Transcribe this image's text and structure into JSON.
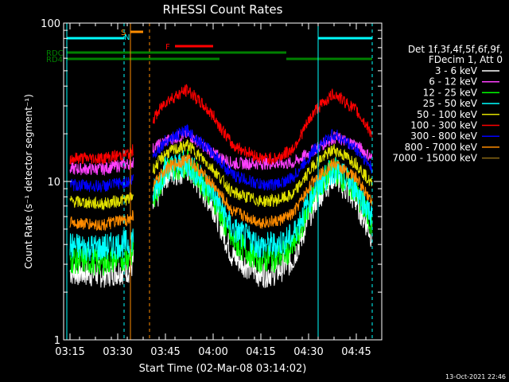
{
  "chart_data": {
    "type": "line",
    "title": "RHESSI Count Rates",
    "xlabel": "Start Time (02-Mar-08 03:14:02)",
    "ylabel": "Count Rate (s⁻¹ detector segment⁻¹)",
    "y_scale": "log",
    "ylim": [
      1,
      100
    ],
    "xlim": [
      "03:13",
      "04:53"
    ],
    "x_ticks": [
      "03:15",
      "03:30",
      "03:45",
      "04:00",
      "04:15",
      "04:30",
      "04:45"
    ],
    "y_ticks": [
      "1",
      "10",
      "100"
    ],
    "footer_date": "13-Oct-2021 22:46",
    "legend": {
      "header_line1": "Det 1f,3f,4f,5f,6f,9f,",
      "header_line2": "FDecim 1, Att 0",
      "placement": "right"
    },
    "series": [
      {
        "name": "3 - 6 keV",
        "color": "#ffffff",
        "x": [
          "03:15",
          "03:25",
          "03:34",
          "03:38",
          "03:45",
          "03:52",
          "04:00",
          "04:06",
          "04:15",
          "04:20",
          "04:25",
          "04:32",
          "04:38",
          "04:45",
          "04:50"
        ],
        "values": [
          2.7,
          2.6,
          2.8,
          null,
          11,
          12,
          7,
          3.4,
          2.6,
          2.7,
          3.2,
          7.5,
          11,
          7.5,
          4.5
        ]
      },
      {
        "name": "6 - 12 keV",
        "color": "#ff40ff",
        "x": [
          "03:15",
          "03:25",
          "03:34",
          "03:38",
          "03:45",
          "03:52",
          "04:00",
          "04:06",
          "04:15",
          "04:20",
          "04:25",
          "04:32",
          "04:38",
          "04:45",
          "04:50"
        ],
        "values": [
          12,
          12,
          13,
          null,
          18,
          20,
          15,
          13,
          13,
          13,
          13,
          16,
          19,
          17,
          14
        ]
      },
      {
        "name": "12 - 25 keV",
        "color": "#00ff00",
        "x": [
          "03:15",
          "03:25",
          "03:34",
          "03:38",
          "03:45",
          "03:52",
          "04:00",
          "04:06",
          "04:15",
          "04:20",
          "04:25",
          "04:32",
          "04:38",
          "04:45",
          "04:50"
        ],
        "values": [
          3.2,
          3.1,
          3.4,
          null,
          12,
          13,
          8,
          4.2,
          3.2,
          3.3,
          3.8,
          8.5,
          12,
          8.5,
          5.3
        ]
      },
      {
        "name": "25 - 50 keV",
        "color": "#00ffff",
        "x": [
          "03:15",
          "03:25",
          "03:34",
          "03:38",
          "03:45",
          "03:52",
          "04:00",
          "04:06",
          "04:15",
          "04:20",
          "04:25",
          "04:32",
          "04:38",
          "04:45",
          "04:50"
        ],
        "values": [
          3.9,
          3.8,
          4.1,
          null,
          12,
          13,
          8.5,
          5,
          3.9,
          4,
          4.5,
          9,
          12,
          9,
          6
        ]
      },
      {
        "name": "50 - 100 keV",
        "color": "#e0e000",
        "x": [
          "03:15",
          "03:25",
          "03:34",
          "03:38",
          "03:45",
          "03:52",
          "04:00",
          "04:06",
          "04:15",
          "04:20",
          "04:25",
          "04:32",
          "04:38",
          "04:45",
          "04:50"
        ],
        "values": [
          7.5,
          7.2,
          7.8,
          null,
          15,
          17,
          12,
          8.5,
          7.5,
          7.6,
          8.2,
          13,
          16,
          13,
          9.5
        ]
      },
      {
        "name": "100 - 300 keV",
        "color": "#ff0000",
        "x": [
          "03:15",
          "03:25",
          "03:34",
          "03:38",
          "03:45",
          "03:52",
          "04:00",
          "04:06",
          "04:15",
          "04:20",
          "04:25",
          "04:32",
          "04:38",
          "04:45",
          "04:50"
        ],
        "values": [
          14,
          14,
          15,
          null,
          32,
          38,
          26,
          17,
          14,
          14,
          16,
          28,
          36,
          28,
          20
        ]
      },
      {
        "name": "300 - 800 keV",
        "color": "#0000ff",
        "x": [
          "03:15",
          "03:25",
          "03:34",
          "03:38",
          "03:45",
          "03:52",
          "04:00",
          "04:06",
          "04:15",
          "04:20",
          "04:25",
          "04:32",
          "04:38",
          "04:45",
          "04:50"
        ],
        "values": [
          9.5,
          9.3,
          10,
          null,
          18,
          21,
          15,
          11,
          9.5,
          9.6,
          10.5,
          16,
          20,
          16,
          12
        ]
      },
      {
        "name": "800 - 7000 keV",
        "color": "#ff8c00",
        "x": [
          "03:15",
          "03:25",
          "03:34",
          "03:38",
          "03:45",
          "03:52",
          "04:00",
          "04:06",
          "04:15",
          "04:20",
          "04:25",
          "04:32",
          "04:38",
          "04:45",
          "04:50"
        ],
        "values": [
          5.5,
          5.3,
          5.8,
          null,
          12,
          14,
          9.5,
          6.5,
          5.5,
          5.6,
          6.2,
          10.5,
          13,
          10.5,
          7.5
        ]
      },
      {
        "name": "7000 - 15000 keV",
        "color": "#8b6914",
        "x": [],
        "values": []
      }
    ],
    "flag_bars": [
      {
        "label": "",
        "color": "#00ffff",
        "segments": [
          [
            "03:14",
            "03:32"
          ],
          [
            "04:33",
            "04:50"
          ]
        ]
      },
      {
        "label": "S",
        "color": "#ff8c00",
        "segments": [
          [
            "03:34",
            "03:38"
          ]
        ]
      },
      {
        "label": "F",
        "color": "#ff0000",
        "segments": [
          [
            "03:48",
            "04:00"
          ]
        ]
      },
      {
        "label": "RDC",
        "color": "#008000",
        "segments": [
          [
            "03:14",
            "03:38"
          ],
          [
            "03:38",
            "04:02"
          ],
          [
            "04:02",
            "04:23"
          ]
        ]
      },
      {
        "label": "RD4",
        "color": "#008000",
        "segments": [
          [
            "03:14",
            "03:38"
          ],
          [
            "03:38",
            "04:02"
          ],
          [
            "04:23",
            "04:50"
          ]
        ]
      }
    ],
    "flag_label_N": "N",
    "vertical_lines": [
      {
        "x": "03:14",
        "color": "#00ffff",
        "style": "solid"
      },
      {
        "x": "03:32",
        "color": "#00ffff",
        "style": "dashed"
      },
      {
        "x": "03:34",
        "color": "#ff8c00",
        "style": "solid"
      },
      {
        "x": "03:40",
        "color": "#ff8c00",
        "style": "dashed"
      },
      {
        "x": "04:33",
        "color": "#00ffff",
        "style": "solid"
      },
      {
        "x": "04:50",
        "color": "#00ffff",
        "style": "dashed"
      }
    ]
  }
}
